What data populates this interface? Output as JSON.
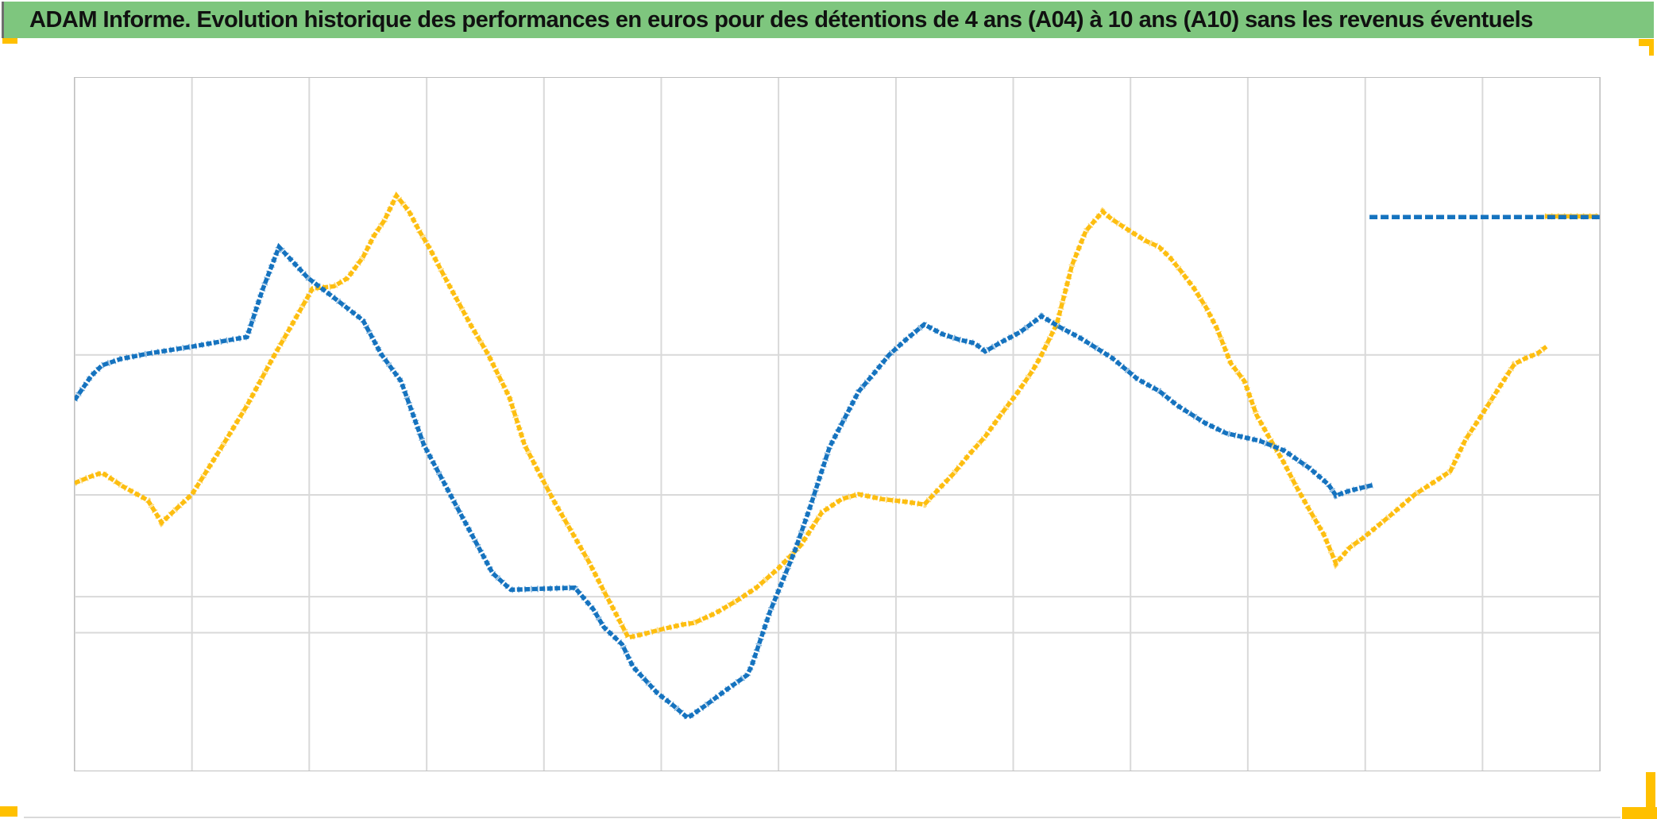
{
  "banner": {
    "title": "ADAM Informe. Evolution historique des performances en euros pour des détentions de 4 ans (A04) à 10 ans (A10) sans les revenus éventuels",
    "bg_color": "#7ec67e",
    "text_color": "#111111"
  },
  "colors": {
    "blue_series": "#1573bf",
    "gold_series": "#fdbe10",
    "gridline": "#d9d9d9",
    "plot_border": "#bfbfbf",
    "corner_marker_gold": "#ffc000",
    "background": "#ffffff"
  },
  "chart_data": {
    "type": "line",
    "title": "ADAM Informe. Evolution historique des performances en euros pour des détentions de 4 ans (A04) à 10 ans (A10) sans les revenus éventuels",
    "xlabel": "",
    "ylabel": "",
    "axis_tick_labels_visible": false,
    "legend": "none",
    "grid": "on",
    "x_unit": "percent of plot width (no axis labels in image)",
    "y_unit": "percent of plot height above bottom border (no axis labels in image)",
    "xlim": [
      0,
      100
    ],
    "ylim": [
      0,
      100
    ],
    "vertical_gridlines_pct": [
      0,
      7.69,
      15.38,
      23.08,
      30.77,
      38.46,
      46.15,
      53.85,
      61.54,
      69.23,
      76.92,
      84.62,
      92.31,
      100
    ],
    "horizontal_gridlines_pct": [
      60.0,
      39.8,
      25.1,
      19.9
    ],
    "marker_style": "dense overlapping plus markers (drawn as thick broken strokes)",
    "series": [
      {
        "name": "gold-series (A04/A10)",
        "color": "#fdbe10",
        "points": [
          [
            0.0,
            41.5
          ],
          [
            1.0,
            42.4
          ],
          [
            1.8,
            43.0
          ],
          [
            3.1,
            41.1
          ],
          [
            4.8,
            39.0
          ],
          [
            5.7,
            35.8
          ],
          [
            7.7,
            39.9
          ],
          [
            9.5,
            46.2
          ],
          [
            11.3,
            52.7
          ],
          [
            13.0,
            59.6
          ],
          [
            14.7,
            66.1
          ],
          [
            15.6,
            69.6
          ],
          [
            17.0,
            69.9
          ],
          [
            17.9,
            71.1
          ],
          [
            18.9,
            74.1
          ],
          [
            19.6,
            77.1
          ],
          [
            20.3,
            79.4
          ],
          [
            21.1,
            83.0
          ],
          [
            21.9,
            80.8
          ],
          [
            22.6,
            77.9
          ],
          [
            23.3,
            75.3
          ],
          [
            24.3,
            71.1
          ],
          [
            26.0,
            64.2
          ],
          [
            27.1,
            60.1
          ],
          [
            28.5,
            53.9
          ],
          [
            29.5,
            47.0
          ],
          [
            30.3,
            43.6
          ],
          [
            31.4,
            39.0
          ],
          [
            32.6,
            34.4
          ],
          [
            33.7,
            30.2
          ],
          [
            34.7,
            25.9
          ],
          [
            35.4,
            23.0
          ],
          [
            36.3,
            19.2
          ],
          [
            37.3,
            19.7
          ],
          [
            38.5,
            20.4
          ],
          [
            39.9,
            21.1
          ],
          [
            40.6,
            21.3
          ],
          [
            42.0,
            22.7
          ],
          [
            43.4,
            24.5
          ],
          [
            44.7,
            26.4
          ],
          [
            46.1,
            29.1
          ],
          [
            47.6,
            32.5
          ],
          [
            49.0,
            37.3
          ],
          [
            50.3,
            39.2
          ],
          [
            51.4,
            39.9
          ],
          [
            52.9,
            39.2
          ],
          [
            54.5,
            38.8
          ],
          [
            55.7,
            38.4
          ],
          [
            56.6,
            40.5
          ],
          [
            57.6,
            42.8
          ],
          [
            58.6,
            45.5
          ],
          [
            59.7,
            48.2
          ],
          [
            60.7,
            51.3
          ],
          [
            61.8,
            54.5
          ],
          [
            62.8,
            57.7
          ],
          [
            63.3,
            59.6
          ],
          [
            64.4,
            64.5
          ],
          [
            65.4,
            73.0
          ],
          [
            66.3,
            77.9
          ],
          [
            67.4,
            80.7
          ],
          [
            68.0,
            79.6
          ],
          [
            68.9,
            78.3
          ],
          [
            70.2,
            76.5
          ],
          [
            71.1,
            75.6
          ],
          [
            71.8,
            74.1
          ],
          [
            72.5,
            72.2
          ],
          [
            73.4,
            69.6
          ],
          [
            74.2,
            66.8
          ],
          [
            74.9,
            63.8
          ],
          [
            75.8,
            58.8
          ],
          [
            76.7,
            56.2
          ],
          [
            77.5,
            51.3
          ],
          [
            78.4,
            47.8
          ],
          [
            79.3,
            44.4
          ],
          [
            80.1,
            41.0
          ],
          [
            81.0,
            37.5
          ],
          [
            81.9,
            34.1
          ],
          [
            82.7,
            29.9
          ],
          [
            83.6,
            32.2
          ],
          [
            84.5,
            33.6
          ],
          [
            86.2,
            36.7
          ],
          [
            87.9,
            39.9
          ],
          [
            89.1,
            41.6
          ],
          [
            90.2,
            43.2
          ],
          [
            91.2,
            47.8
          ],
          [
            92.1,
            50.8
          ],
          [
            93.0,
            53.9
          ],
          [
            93.9,
            57.0
          ],
          [
            94.4,
            58.7
          ],
          [
            95.2,
            59.6
          ],
          [
            95.9,
            60.2
          ],
          [
            96.5,
            61.2
          ]
        ]
      },
      {
        "name": "blue-series (A04/A10)",
        "color": "#1573bf",
        "points": [
          [
            0.0,
            53.5
          ],
          [
            0.6,
            55.4
          ],
          [
            1.1,
            57.0
          ],
          [
            1.8,
            58.5
          ],
          [
            3.0,
            59.4
          ],
          [
            4.8,
            60.2
          ],
          [
            7.7,
            61.2
          ],
          [
            11.3,
            62.6
          ],
          [
            12.3,
            69.3
          ],
          [
            13.4,
            75.6
          ],
          [
            15.3,
            71.1
          ],
          [
            16.8,
            68.6
          ],
          [
            18.9,
            65.0
          ],
          [
            20.1,
            60.1
          ],
          [
            21.4,
            56.2
          ],
          [
            22.9,
            47.0
          ],
          [
            25.1,
            37.9
          ],
          [
            27.4,
            28.5
          ],
          [
            28.6,
            26.1
          ],
          [
            32.8,
            26.4
          ],
          [
            34.0,
            23.3
          ],
          [
            34.7,
            20.7
          ],
          [
            35.9,
            18.2
          ],
          [
            36.6,
            15.0
          ],
          [
            38.2,
            11.2
          ],
          [
            39.3,
            9.3
          ],
          [
            40.2,
            7.6
          ],
          [
            41.3,
            9.3
          ],
          [
            42.7,
            11.6
          ],
          [
            44.1,
            13.8
          ],
          [
            44.4,
            15.2
          ],
          [
            45.6,
            23.0
          ],
          [
            47.2,
            31.6
          ],
          [
            48.2,
            37.9
          ],
          [
            49.5,
            46.7
          ],
          [
            51.4,
            54.7
          ],
          [
            52.4,
            57.3
          ],
          [
            53.4,
            60.0
          ],
          [
            54.5,
            62.2
          ],
          [
            55.7,
            64.4
          ],
          [
            56.9,
            63.0
          ],
          [
            58.0,
            62.2
          ],
          [
            59.0,
            61.7
          ],
          [
            59.7,
            60.5
          ],
          [
            60.8,
            61.9
          ],
          [
            62.0,
            63.3
          ],
          [
            63.4,
            65.6
          ],
          [
            64.6,
            64.0
          ],
          [
            65.9,
            62.5
          ],
          [
            68.0,
            59.6
          ],
          [
            69.7,
            56.5
          ],
          [
            71.1,
            54.8
          ],
          [
            72.3,
            52.7
          ],
          [
            74.1,
            50.2
          ],
          [
            75.5,
            48.7
          ],
          [
            77.7,
            47.6
          ],
          [
            79.3,
            46.2
          ],
          [
            81.0,
            43.6
          ],
          [
            82.2,
            41.3
          ],
          [
            82.7,
            39.7
          ],
          [
            83.6,
            40.4
          ],
          [
            85.1,
            41.2
          ]
        ]
      },
      {
        "name": "gold-flat-segment-top-right",
        "color": "#fdbe10",
        "points": [
          [
            96.4,
            80.0
          ],
          [
            99.9,
            80.0
          ]
        ]
      },
      {
        "name": "blue-flat-segment-top-right (dashed, overlaps gold)",
        "color": "#1573bf",
        "points": [
          [
            84.9,
            79.9
          ],
          [
            100.0,
            79.9
          ]
        ]
      }
    ]
  },
  "corner_markers": {
    "color": "#ffc000",
    "top_left_bar": "small gold bar below banner, left edge",
    "top_right_bracket": "gold corner bracket below banner, right edge",
    "bottom_left_bar": "gold bar at bottom-left page corner",
    "bottom_right_bracket": "gold corner bracket at bottom-right page corner"
  }
}
